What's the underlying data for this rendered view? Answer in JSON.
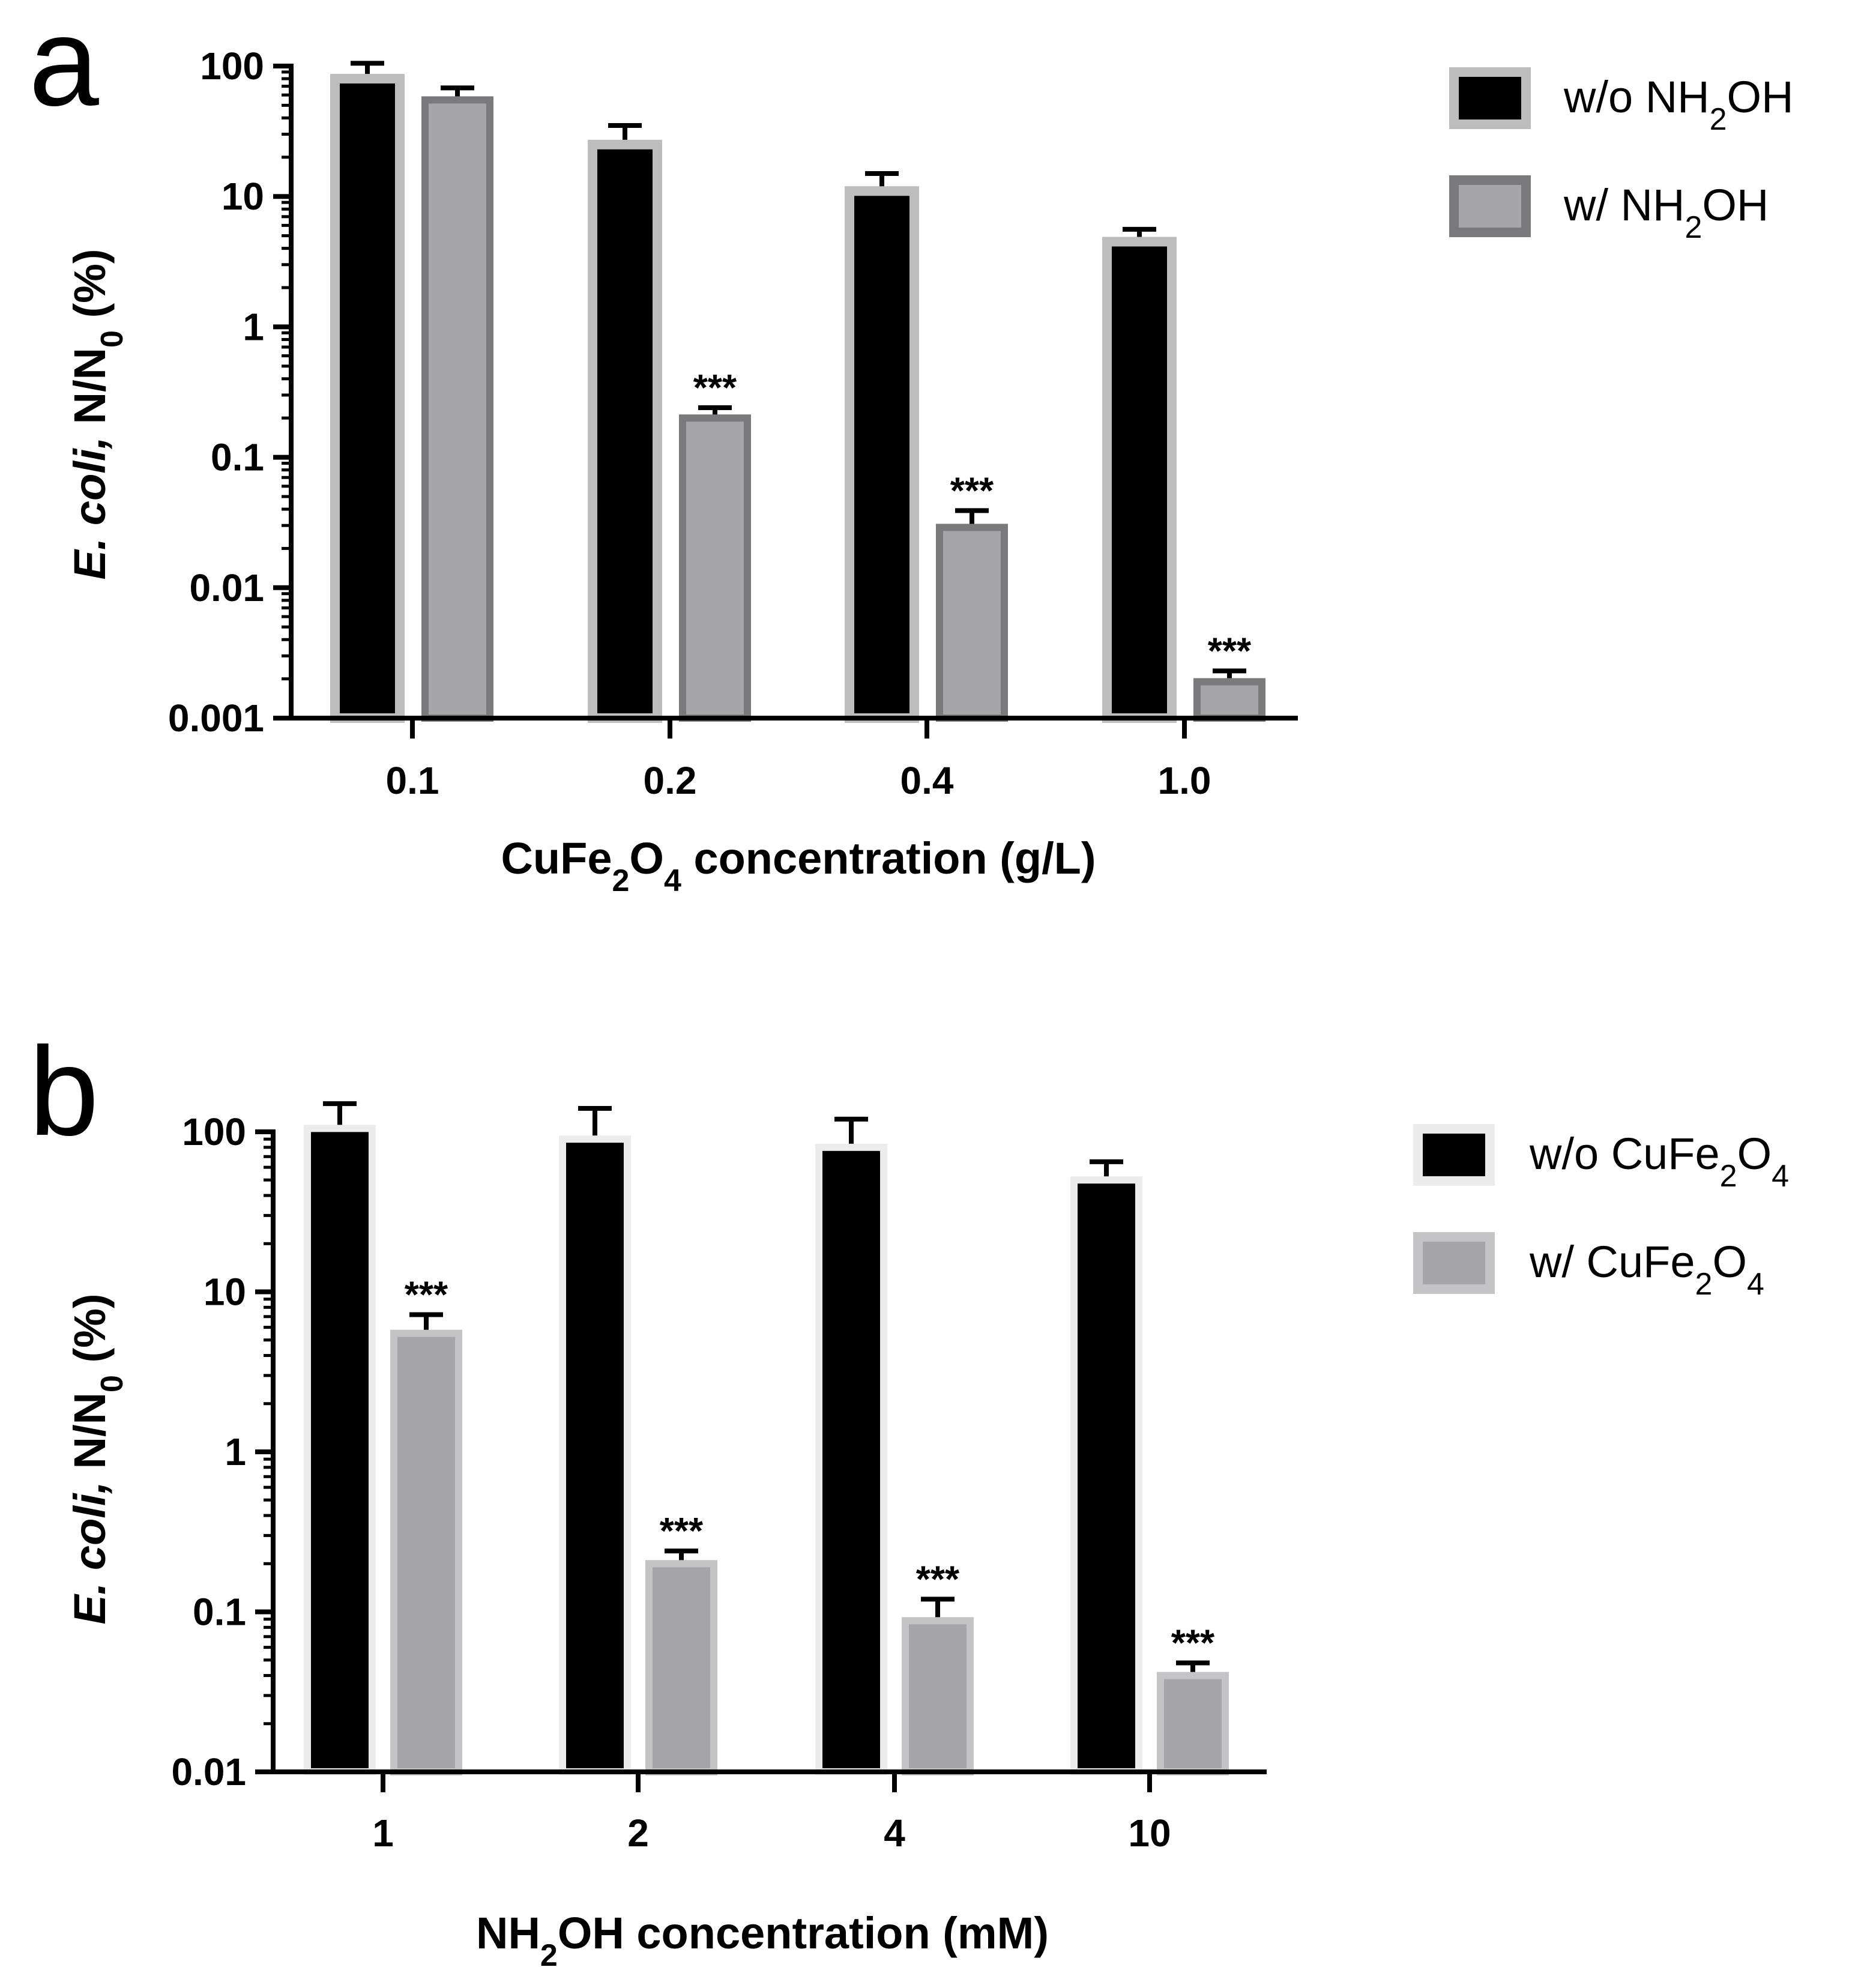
{
  "panels": [
    {
      "letter": "a",
      "ylabel_italic": "E. coli,",
      "ylabel_rest": "N/N",
      "ylabel_sub": "0",
      "ylabel_tail": "(%)",
      "xlabel_pre": "CuFe",
      "xlabel_sub1": "2",
      "xlabel_mid": "O",
      "xlabel_sub2": "4",
      "xlabel_post": "concentration (g/L)",
      "legend": [
        {
          "pre": "w/o NH",
          "sub": "2",
          "post": "OH"
        },
        {
          "pre": "w/ NH",
          "sub": "2",
          "post": "OH"
        }
      ],
      "colors": {
        "series1_fill": "#000000",
        "series1_stroke": "#bdbdbd",
        "series2_fill": "#a6a6a9",
        "series2_stroke": "#7a7a7c"
      }
    },
    {
      "letter": "b",
      "ylabel_italic": "E. coli,",
      "ylabel_rest": "N/N",
      "ylabel_sub": "0",
      "ylabel_tail": "(%)",
      "xlabel_pre": "NH",
      "xlabel_sub1": "2",
      "xlabel_mid": "OH",
      "xlabel_sub2": "",
      "xlabel_post": "concentration (mM)",
      "legend": [
        {
          "pre": "w/o CuFe",
          "sub": "2",
          "post": "O",
          "sub2": "4"
        },
        {
          "pre": "w/ CuFe",
          "sub": "2",
          "post": "O",
          "sub2": "4"
        }
      ],
      "colors": {
        "series1_fill": "#000000",
        "series1_stroke": "#ececec",
        "series2_fill": "#a6a6a9",
        "series2_stroke": "#c4c4c6"
      }
    }
  ],
  "chart_data": [
    {
      "type": "bar",
      "yscale": "log",
      "ylim": [
        0.001,
        100
      ],
      "yticks": [
        "0.001",
        "0.01",
        "0.1",
        "1",
        "10",
        "100"
      ],
      "categories": [
        "0.1",
        "0.2",
        "0.4",
        "1.0"
      ],
      "xlabel": "CuFe2O4 concentration (g/L)",
      "ylabel": "E. coli, N/N0 (%)",
      "legend_position": "top-right",
      "series": [
        {
          "name": "w/o NH2OH",
          "values": [
            80,
            25,
            11,
            4.5
          ],
          "error_upper": [
            105,
            35,
            15,
            5.6
          ],
          "significance": [
            "",
            "",
            "",
            ""
          ]
        },
        {
          "name": "w/ NH2OH",
          "values": [
            55,
            0.2,
            0.029,
            0.0019
          ],
          "error_upper": [
            68,
            0.24,
            0.039,
            0.0023
          ],
          "significance": [
            "",
            "***",
            "***",
            "***"
          ]
        }
      ]
    },
    {
      "type": "bar",
      "yscale": "log",
      "ylim": [
        0.01,
        100
      ],
      "yticks": [
        "0.01",
        "0.1",
        "1",
        "10",
        "100"
      ],
      "categories": [
        "1",
        "2",
        "4",
        "10"
      ],
      "xlabel": "NH2OH concentration (mM)",
      "ylabel": "E. coli, N/N0 (%)",
      "legend_position": "top-right",
      "series": [
        {
          "name": "w/o CuFe2O4",
          "values": [
            105,
            90,
            80,
            50
          ],
          "error_upper": [
            150,
            140,
            120,
            65
          ],
          "significance": [
            "",
            "",
            "",
            ""
          ]
        },
        {
          "name": "w/ CuFe2O4",
          "values": [
            5.5,
            0.2,
            0.088,
            0.04
          ],
          "error_upper": [
            7.2,
            0.24,
            0.12,
            0.048
          ],
          "significance": [
            "***",
            "***",
            "***",
            "***"
          ]
        }
      ]
    }
  ]
}
